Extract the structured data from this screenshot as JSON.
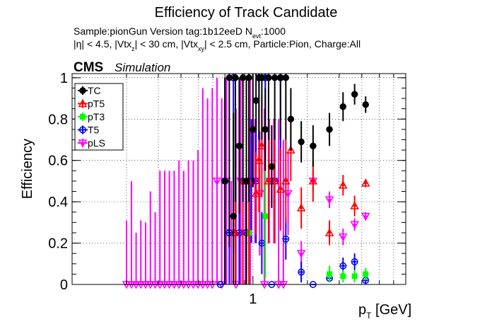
{
  "chart_data": {
    "type": "scatter",
    "title": "Efficiency of Track Candidate",
    "subtitle_sample": "Sample:pionGun   Version tag:1b12eeD  N",
    "subtitle_nevt_sub": "evt",
    "subtitle_nevt_value": ":1000",
    "cuts": {
      "a": "|η| < 4.5, |Vtx",
      "a_sub": "z",
      "b": "| < 30 cm, |Vtx",
      "b_sub": "xy",
      "c": "| < 2.5 cm, Particle:Pion, Charge:All"
    },
    "cms_label": "CMS",
    "simulation_label": "Simulation",
    "ylabel": "Efficiency",
    "xlabel_p": "p",
    "xlabel_sub": "T",
    "xlabel_unit": " [GeV]",
    "x_scale": "log",
    "xlim": [
      0.1,
      7.0
    ],
    "ylim": [
      0,
      1.02
    ],
    "x_tick_labels": [
      {
        "value": 1,
        "label": "1"
      }
    ],
    "y_tick_labels": [
      {
        "value": 0,
        "label": "0"
      },
      {
        "value": 0.2,
        "label": "0.2"
      },
      {
        "value": 0.4,
        "label": "0.4"
      },
      {
        "value": 0.6,
        "label": "0.6"
      },
      {
        "value": 0.8,
        "label": "0.8"
      },
      {
        "value": 1,
        "label": "1"
      }
    ],
    "grid": true,
    "legend_position": "top-left",
    "series": [
      {
        "name": "TC",
        "color": "#000000",
        "marker": "filled-circle",
        "points": [
          {
            "x": 0.7,
            "y": 0.5,
            "err": 0.5
          },
          {
            "x": 0.74,
            "y": 1.0,
            "err": 0.82
          },
          {
            "x": 0.78,
            "y": 0.33,
            "err": 0.5
          },
          {
            "x": 0.8,
            "y": 1.0,
            "err": 0.6
          },
          {
            "x": 0.84,
            "y": 0.67,
            "err": 0.33
          },
          {
            "x": 0.88,
            "y": 1.0,
            "err": 0.6
          },
          {
            "x": 0.92,
            "y": 0.5,
            "err": 0.5
          },
          {
            "x": 0.95,
            "y": 1.0,
            "err": 0.6
          },
          {
            "x": 1.0,
            "y": 0.75,
            "err": 0.28
          },
          {
            "x": 1.04,
            "y": 0.89,
            "err": 0.15
          },
          {
            "x": 1.08,
            "y": 1.0,
            "err": 0.3
          },
          {
            "x": 1.12,
            "y": 1.0,
            "err": 0.3
          },
          {
            "x": 1.17,
            "y": 0.75,
            "err": 0.2
          },
          {
            "x": 1.22,
            "y": 1.0,
            "err": 0.3
          },
          {
            "x": 1.27,
            "y": 0.57,
            "err": 0.2
          },
          {
            "x": 1.32,
            "y": 1.0,
            "err": 0.3
          },
          {
            "x": 1.42,
            "y": 1.0,
            "err": 0.3
          },
          {
            "x": 1.52,
            "y": 1.0,
            "err": 0.3
          },
          {
            "x": 1.62,
            "y": 0.8,
            "err": 0.15
          },
          {
            "x": 1.85,
            "y": 0.69,
            "err": 0.1
          },
          {
            "x": 2.15,
            "y": 0.67,
            "err": 0.1
          },
          {
            "x": 2.65,
            "y": 0.75,
            "err": 0.08
          },
          {
            "x": 3.15,
            "y": 0.86,
            "err": 0.07
          },
          {
            "x": 3.65,
            "y": 0.92,
            "err": 0.05
          },
          {
            "x": 4.2,
            "y": 0.87,
            "err": 0.04
          }
        ]
      },
      {
        "name": "pT5",
        "color": "#ff0000",
        "marker": "open-triangle",
        "points": [
          {
            "x": 0.8,
            "y": 0.25,
            "err": 0.25
          },
          {
            "x": 0.88,
            "y": 0.5,
            "err": 0.5
          },
          {
            "x": 0.95,
            "y": 0.5,
            "err": 0.5
          },
          {
            "x": 1.04,
            "y": 0.44,
            "err": 0.2
          },
          {
            "x": 1.08,
            "y": 0.6,
            "err": 0.25
          },
          {
            "x": 1.12,
            "y": 0.67,
            "err": 0.25
          },
          {
            "x": 1.22,
            "y": 0.5,
            "err": 0.3
          },
          {
            "x": 1.32,
            "y": 0.5,
            "err": 0.3
          },
          {
            "x": 1.42,
            "y": 0.46,
            "err": 0.2
          },
          {
            "x": 1.52,
            "y": 0.5,
            "err": 0.2
          },
          {
            "x": 1.62,
            "y": 0.65,
            "err": 0.15
          },
          {
            "x": 1.85,
            "y": 0.37,
            "err": 0.1
          },
          {
            "x": 2.15,
            "y": 0.5,
            "err": 0.1
          },
          {
            "x": 2.65,
            "y": 0.25,
            "err": 0.06
          },
          {
            "x": 3.15,
            "y": 0.48,
            "err": 0.05
          },
          {
            "x": 3.65,
            "y": 0.38,
            "err": 0.05
          },
          {
            "x": 4.2,
            "y": 0.49,
            "err": 0.02
          }
        ]
      },
      {
        "name": "pT3",
        "color": "#00ff00",
        "marker": "filled-square",
        "points": [
          {
            "x": 0.95,
            "y": 0.25,
            "err": 0.25
          },
          {
            "x": 1.17,
            "y": 0.33,
            "err": 0.3
          },
          {
            "x": 2.65,
            "y": 0.05,
            "err": 0.04
          },
          {
            "x": 3.15,
            "y": 0.04,
            "err": 0.03
          },
          {
            "x": 3.65,
            "y": 0.04,
            "err": 0.03
          },
          {
            "x": 4.2,
            "y": 0.05,
            "err": 0.03
          }
        ]
      },
      {
        "name": "T5",
        "color": "#0000ff",
        "marker": "open-circle",
        "points": [
          {
            "x": 0.66,
            "y": 0.0,
            "err": 0.0
          },
          {
            "x": 0.7,
            "y": 0.5,
            "err": 0.5
          },
          {
            "x": 0.74,
            "y": 0.25,
            "err": 0.25
          },
          {
            "x": 0.78,
            "y": 1.0,
            "err": 0.85
          },
          {
            "x": 0.84,
            "y": 0.25,
            "err": 0.25
          },
          {
            "x": 0.88,
            "y": 0.5,
            "err": 0.5
          },
          {
            "x": 0.92,
            "y": 0.25,
            "err": 0.2
          },
          {
            "x": 0.98,
            "y": 0.5,
            "err": 0.3
          },
          {
            "x": 1.04,
            "y": 0.5,
            "err": 0.3
          },
          {
            "x": 1.08,
            "y": 1.0,
            "err": 0.4
          },
          {
            "x": 1.12,
            "y": 0.2,
            "err": 0.15
          },
          {
            "x": 1.17,
            "y": 1.0,
            "err": 0.4
          },
          {
            "x": 1.27,
            "y": 0.0,
            "err": 0.0
          },
          {
            "x": 1.32,
            "y": 0.5,
            "err": 0.3
          },
          {
            "x": 1.42,
            "y": 1.0,
            "err": 0.4
          },
          {
            "x": 1.52,
            "y": 0.22,
            "err": 0.1
          },
          {
            "x": 1.85,
            "y": 0.06,
            "err": 0.05
          },
          {
            "x": 2.15,
            "y": 0.0,
            "err": 0.0
          },
          {
            "x": 2.65,
            "y": 0.03,
            "err": 0.02
          },
          {
            "x": 3.15,
            "y": 0.09,
            "err": 0.04
          },
          {
            "x": 3.65,
            "y": 0.11,
            "err": 0.04
          },
          {
            "x": 4.2,
            "y": 0.02,
            "err": 0.02
          }
        ]
      },
      {
        "name": "pLS",
        "color": "#ff00ff",
        "marker": "open-triangle-down",
        "points": [
          {
            "x": 0.2,
            "y": 0.0,
            "err": 0.31
          },
          {
            "x": 0.213,
            "y": 0.0,
            "err": 0.5
          },
          {
            "x": 0.226,
            "y": 0.0,
            "err": 0.25
          },
          {
            "x": 0.24,
            "y": 0.0,
            "err": 0.31
          },
          {
            "x": 0.255,
            "y": 0.0,
            "err": 0.3
          },
          {
            "x": 0.271,
            "y": 0.0,
            "err": 0.45
          },
          {
            "x": 0.288,
            "y": 0.0,
            "err": 0.35
          },
          {
            "x": 0.306,
            "y": 0.0,
            "err": 0.55
          },
          {
            "x": 0.325,
            "y": 0.0,
            "err": 0.55
          },
          {
            "x": 0.345,
            "y": 0.0,
            "err": 0.55
          },
          {
            "x": 0.367,
            "y": 0.0,
            "err": 0.55
          },
          {
            "x": 0.39,
            "y": 0.0,
            "err": 0.6
          },
          {
            "x": 0.414,
            "y": 0.0,
            "err": 0.55
          },
          {
            "x": 0.44,
            "y": 0.0,
            "err": 0.6
          },
          {
            "x": 0.468,
            "y": 0.0,
            "err": 0.6
          },
          {
            "x": 0.497,
            "y": 0.0,
            "err": 0.65
          },
          {
            "x": 0.528,
            "y": 0.0,
            "err": 0.95
          },
          {
            "x": 0.561,
            "y": 0.0,
            "err": 0.9
          },
          {
            "x": 0.596,
            "y": 0.0,
            "err": 0.95
          },
          {
            "x": 0.633,
            "y": 0.5,
            "err": 0.5
          },
          {
            "x": 0.672,
            "y": 0.0,
            "err": 0.9
          },
          {
            "x": 0.714,
            "y": 0.5,
            "err": 0.5
          },
          {
            "x": 0.759,
            "y": 0.25,
            "err": 0.25
          },
          {
            "x": 0.806,
            "y": 0.0,
            "err": 0.85
          },
          {
            "x": 0.856,
            "y": 0.5,
            "err": 0.5
          },
          {
            "x": 0.909,
            "y": 0.25,
            "err": 0.25
          },
          {
            "x": 0.966,
            "y": 0.5,
            "err": 0.5
          },
          {
            "x": 1.026,
            "y": 0.5,
            "err": 0.3
          },
          {
            "x": 1.09,
            "y": 0.44,
            "err": 0.3
          },
          {
            "x": 1.158,
            "y": 0.0,
            "err": 0.85
          },
          {
            "x": 1.23,
            "y": 0.5,
            "err": 0.3
          },
          {
            "x": 1.306,
            "y": 0.5,
            "err": 0.3
          },
          {
            "x": 1.387,
            "y": 0.0,
            "err": 0.8
          },
          {
            "x": 1.473,
            "y": 0.0,
            "err": 0.7
          },
          {
            "x": 1.565,
            "y": 0.44,
            "err": 0.2
          },
          {
            "x": 1.85,
            "y": 0.15,
            "err": 0.06
          },
          {
            "x": 2.15,
            "y": 0.5,
            "err": 0.05
          },
          {
            "x": 2.65,
            "y": 0.41,
            "err": 0.04
          },
          {
            "x": 3.15,
            "y": 0.23,
            "err": 0.04
          },
          {
            "x": 3.65,
            "y": 0.29,
            "err": 0.03
          },
          {
            "x": 4.2,
            "y": 0.33,
            "err": 0.02
          }
        ]
      }
    ]
  }
}
